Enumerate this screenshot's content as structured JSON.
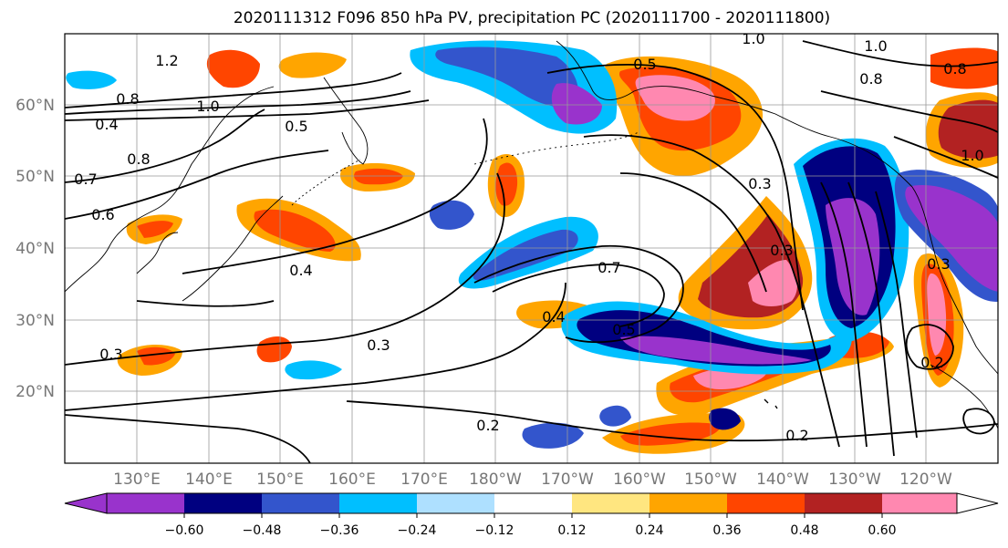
{
  "title": "2020111312 F096 850 hPa PV, precipitation PC (2020111700 - 2020111800)",
  "map": {
    "lat_labels": [
      "60°N",
      "50°N",
      "40°N",
      "30°N",
      "20°N"
    ],
    "lon_labels": [
      "130°E",
      "140°E",
      "150°E",
      "160°E",
      "170°E",
      "180°W",
      "170°W",
      "160°W",
      "150°W",
      "140°W",
      "130°W",
      "120°W"
    ],
    "contour_labels": [
      "1.2",
      "0.8",
      "1.0",
      "0.8",
      "0.4",
      "0.7",
      "0.6",
      "0.5",
      "0.4",
      "0.3",
      "0.7",
      "0.3",
      "0.5",
      "0.4",
      "0.3",
      "0.2",
      "0.2",
      "1.0",
      "1.0",
      "0.8",
      "0.8",
      "0.3",
      "0.5",
      "1.0",
      "0.2",
      "0.3"
    ]
  },
  "colorbar": {
    "tick_labels": [
      "−0.60",
      "−0.48",
      "−0.36",
      "−0.24",
      "−0.12",
      "0.12",
      "0.24",
      "0.36",
      "0.48",
      "0.60"
    ],
    "colors": [
      "#9933cc",
      "#000080",
      "#3355cc",
      "#00bfff",
      "#aee0ff",
      "#ffffff",
      "#ffe680",
      "#ffa500",
      "#ff4500",
      "#b22222",
      "#ff88b0",
      "#ffffff"
    ]
  }
}
